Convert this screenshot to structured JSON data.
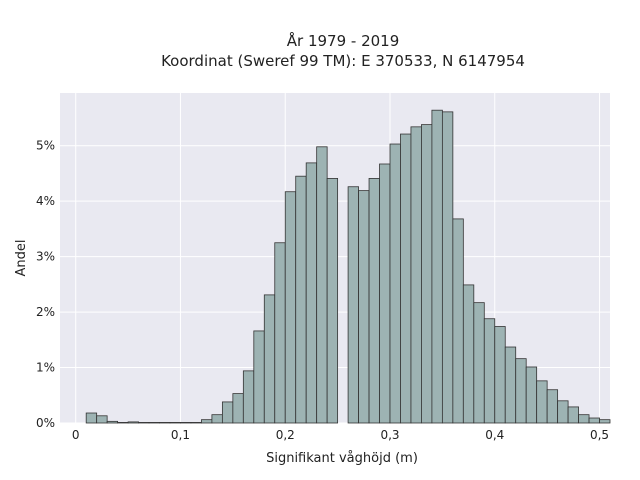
{
  "chart_data": {
    "type": "bar",
    "title": "År 1979 - 2019",
    "subtitle": "Koordinat (Sweref 99 TM): E 370533, N 6147954",
    "xlabel": "Signifikant våghöjd (m)",
    "ylabel": "Andel",
    "x_ticks": [
      {
        "value": 0,
        "label": "0"
      },
      {
        "value": 0.1,
        "label": "0,1"
      },
      {
        "value": 0.2,
        "label": "0,2"
      },
      {
        "value": 0.3,
        "label": "0,3"
      },
      {
        "value": 0.4,
        "label": "0,4"
      },
      {
        "value": 0.5,
        "label": "0,5"
      }
    ],
    "y_ticks": [
      {
        "value": 0,
        "label": "0%"
      },
      {
        "value": 1,
        "label": "1%"
      },
      {
        "value": 2,
        "label": "2%"
      },
      {
        "value": 3,
        "label": "3%"
      },
      {
        "value": 4,
        "label": "4%"
      },
      {
        "value": 5,
        "label": "5%"
      }
    ],
    "xlim": [
      -0.015,
      0.51
    ],
    "ylim": [
      0,
      5.95
    ],
    "bin_width": 0.01,
    "bin_start": 0.01,
    "values": [
      0.18,
      0.13,
      0.03,
      0.01,
      0.02,
      0.01,
      0.01,
      0.01,
      0.01,
      0.01,
      0.01,
      0.06,
      0.15,
      0.38,
      0.53,
      0.94,
      1.66,
      2.31,
      3.25,
      4.17,
      4.45,
      4.69,
      4.98,
      4.41,
      0,
      4.26,
      4.19,
      4.41,
      4.67,
      5.03,
      5.21,
      5.34,
      5.38,
      5.64,
      5.61,
      3.68,
      2.49,
      2.17,
      1.88,
      1.74,
      1.37,
      1.16,
      1.01,
      0.76,
      0.6,
      0.4,
      0.29,
      0.15,
      0.09,
      0.06
    ],
    "grid": true,
    "legend": false,
    "colors": {
      "bar_fill": "#9db3b3",
      "bar_stroke": "#333333",
      "plot_bg": "#e9e9f1",
      "grid": "#ffffff"
    }
  }
}
